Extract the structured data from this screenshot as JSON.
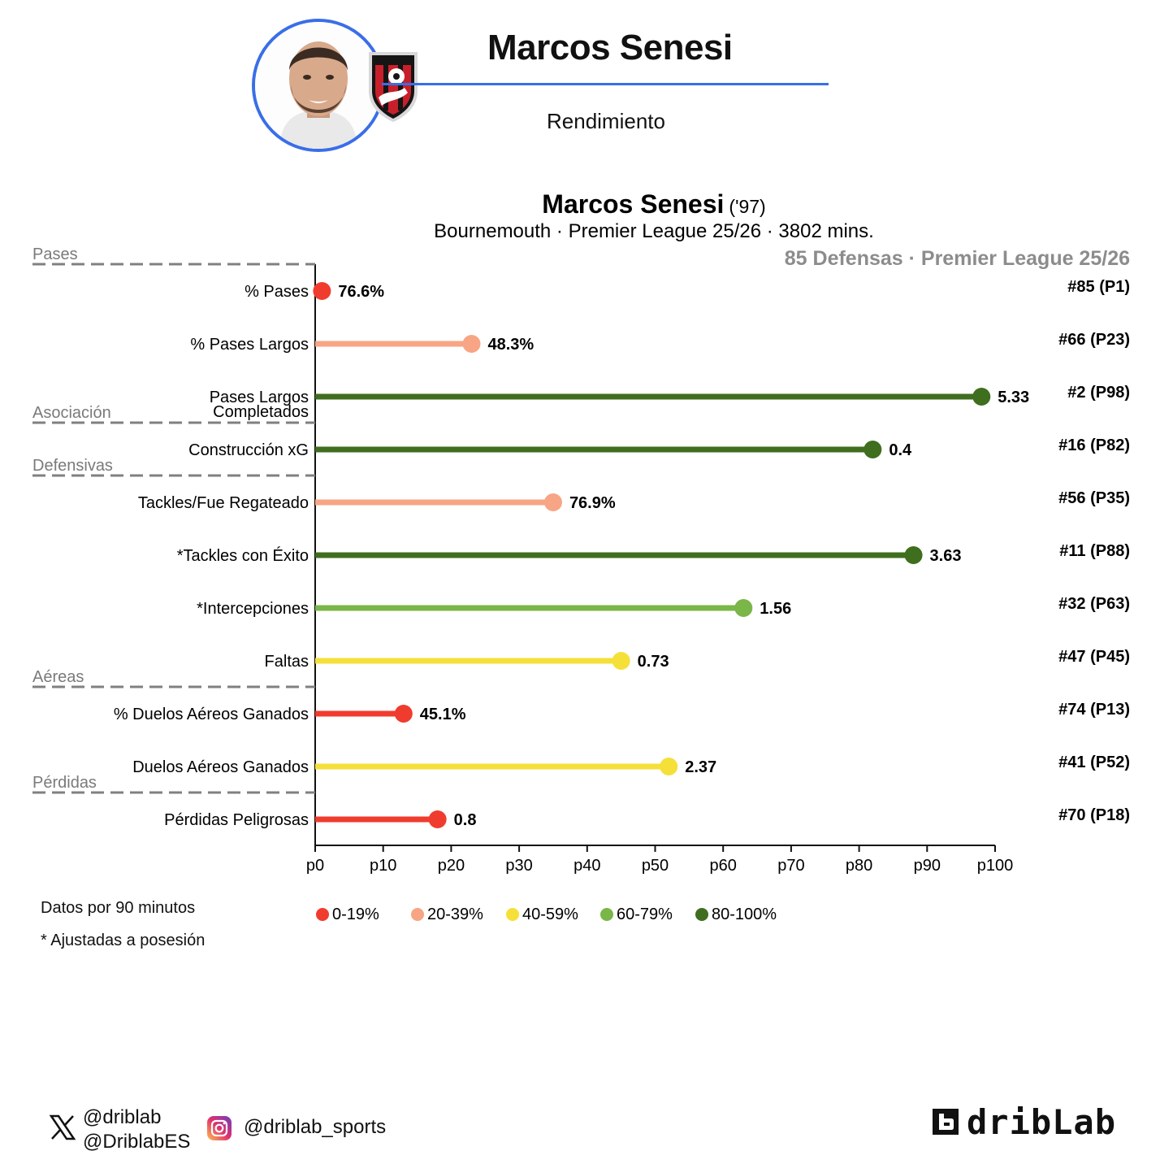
{
  "header": {
    "title": "Marcos Senesi",
    "subtitle": "Rendimiento"
  },
  "chart_data": {
    "type": "lollipop",
    "player_name": "Marcos Senesi",
    "player_year": "('97)",
    "info_line": "Bournemouth · Premier League 25/26 · 3802 mins.",
    "comparison": "85 Defensas · Premier League 25/26",
    "x_ticks": [
      "p0",
      "p10",
      "p20",
      "p30",
      "p40",
      "p50",
      "p60",
      "p70",
      "p80",
      "p90",
      "p100"
    ],
    "xlim": [
      0,
      100
    ],
    "categories": [
      {
        "name": "Pases",
        "before_row": 0
      },
      {
        "name": "Asociación",
        "before_row": 3
      },
      {
        "name": "Defensivas",
        "before_row": 4
      },
      {
        "name": "Aéreas",
        "before_row": 8
      },
      {
        "name": "Pérdidas",
        "before_row": 10
      }
    ],
    "metrics": [
      {
        "label": [
          "% Pases"
        ],
        "percentile": 1,
        "value": "76.6%",
        "rank": "#85 (P1)",
        "color": "#f03c2e"
      },
      {
        "label": [
          "% Pases Largos"
        ],
        "percentile": 23,
        "value": "48.3%",
        "rank": "#66 (P23)",
        "color": "#f7a584"
      },
      {
        "label": [
          "Pases Largos",
          "Completados"
        ],
        "percentile": 98,
        "value": "5.33",
        "rank": "#2 (P98)",
        "color": "#3f6e1f"
      },
      {
        "label": [
          "Construcción xG"
        ],
        "percentile": 82,
        "value": "0.4",
        "rank": "#16 (P82)",
        "color": "#3f6e1f"
      },
      {
        "label": [
          "Tackles/Fue Regateado"
        ],
        "percentile": 35,
        "value": "76.9%",
        "rank": "#56 (P35)",
        "color": "#f7a584"
      },
      {
        "label": [
          "*Tackles con Éxito"
        ],
        "percentile": 88,
        "value": "3.63",
        "rank": "#11 (P88)",
        "color": "#3f6e1f"
      },
      {
        "label": [
          "*Intercepciones"
        ],
        "percentile": 63,
        "value": "1.56",
        "rank": "#32 (P63)",
        "color": "#7ab648"
      },
      {
        "label": [
          "Faltas"
        ],
        "percentile": 45,
        "value": "0.73",
        "rank": "#47 (P45)",
        "color": "#f5e03a"
      },
      {
        "label": [
          "% Duelos Aéreos Ganados"
        ],
        "percentile": 13,
        "value": "45.1%",
        "rank": "#74 (P13)",
        "color": "#f03c2e"
      },
      {
        "label": [
          "Duelos Aéreos Ganados"
        ],
        "percentile": 52,
        "value": "2.37",
        "rank": "#41 (P52)",
        "color": "#f5e03a"
      },
      {
        "label": [
          "Pérdidas Peligrosas"
        ],
        "percentile": 18,
        "value": "0.8",
        "rank": "#70 (P18)",
        "color": "#f03c2e"
      }
    ],
    "legend": [
      {
        "label": "0-19%",
        "color": "#f03c2e"
      },
      {
        "label": "20-39%",
        "color": "#f7a584"
      },
      {
        "label": "40-59%",
        "color": "#f5e03a"
      },
      {
        "label": "60-79%",
        "color": "#7ab648"
      },
      {
        "label": "80-100%",
        "color": "#3f6e1f"
      }
    ]
  },
  "footer": {
    "note1": "Datos por 90 minutos",
    "note2": "* Ajustadas a posesión",
    "twitter1": "@driblab",
    "twitter2": "@DriblabES",
    "instagram": "@driblab_sports",
    "brand": "dribLab"
  }
}
